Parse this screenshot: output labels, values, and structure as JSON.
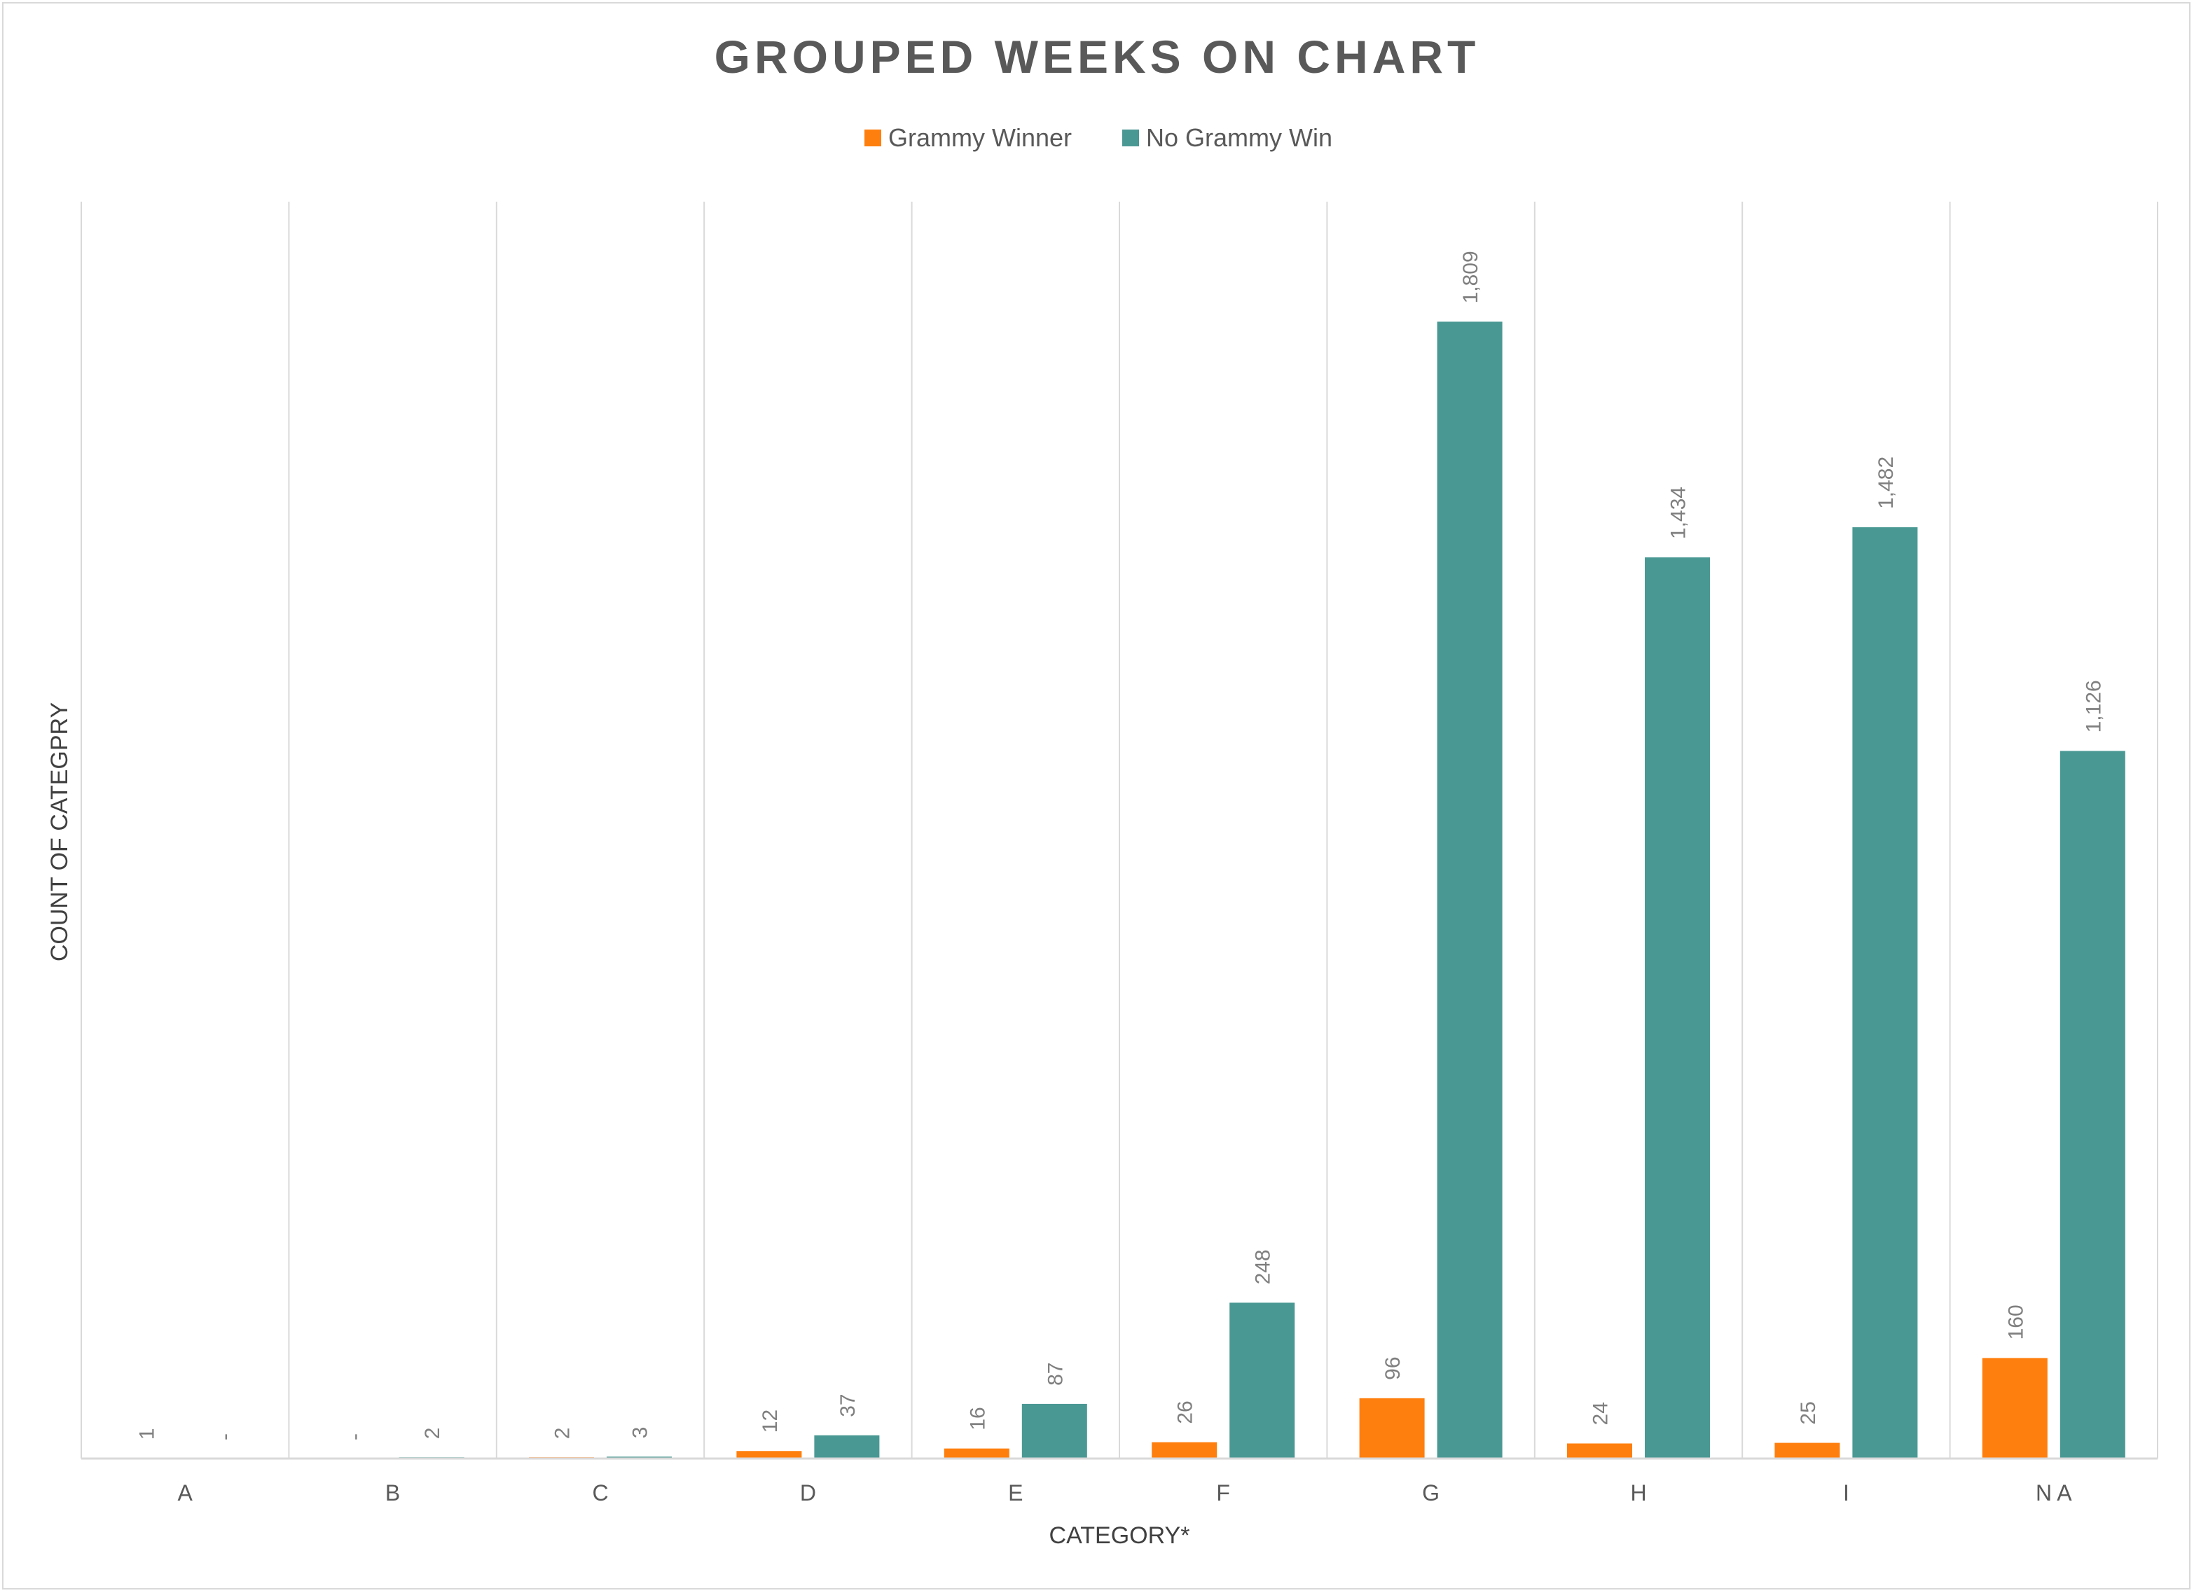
{
  "chart_data": {
    "type": "bar",
    "title": "GROUPED WEEKS ON CHART",
    "xlabel": "CATEGORY*",
    "ylabel": "COUNT OF CATEGPRY",
    "categories": [
      "A",
      "B",
      "C",
      "D",
      "E",
      "F",
      "G",
      "H",
      "I",
      "N A"
    ],
    "series": [
      {
        "name": "Grammy Winner",
        "color": "#ff7f0e",
        "values": [
          1,
          0,
          2,
          12,
          16,
          26,
          96,
          24,
          25,
          160
        ],
        "labels": [
          "1",
          "-",
          "2",
          "12",
          "16",
          "26",
          "96",
          "24",
          "25",
          "160"
        ]
      },
      {
        "name": "No Grammy Win",
        "color": "#4a9893",
        "values": [
          0,
          2,
          3,
          37,
          87,
          248,
          1809,
          1434,
          1482,
          1126
        ],
        "labels": [
          "-",
          "2",
          "3",
          "37",
          "87",
          "248",
          "1,809",
          "1,434",
          "1,482",
          "1,126"
        ]
      }
    ],
    "ylim": [
      0,
      2000
    ],
    "grid": "vertical category separators",
    "legend": "top-center"
  }
}
